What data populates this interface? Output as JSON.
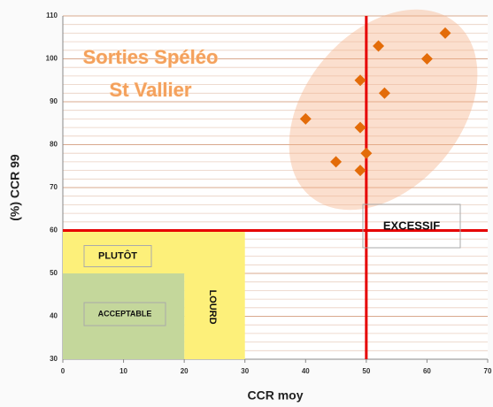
{
  "chart_data": {
    "type": "scatter",
    "title": [
      "Sorties Spéléo",
      "St Vallier"
    ],
    "xlabel": "CCR moy",
    "ylabel": "(%) CCR 99",
    "x": [
      40,
      45,
      49,
      49,
      49,
      50,
      52,
      53,
      60,
      63
    ],
    "values": [
      86,
      76,
      74,
      84,
      95,
      78,
      103,
      92,
      100,
      106
    ],
    "color": "#e36c09",
    "xlim": [
      0,
      70
    ],
    "ylim": [
      30,
      110
    ],
    "xticks": [
      0,
      10,
      20,
      30,
      40,
      50,
      60,
      70
    ],
    "yticks": [
      30,
      40,
      50,
      60,
      70,
      80,
      90,
      100,
      110
    ],
    "grid": true,
    "zones": [
      {
        "label": "PLUTÔT",
        "xlim": [
          0,
          30
        ],
        "ylim": [
          50,
          60
        ],
        "color": "#fdf07a"
      },
      {
        "label": "LOURD",
        "xlim": [
          20,
          30
        ],
        "ylim": [
          30,
          50
        ],
        "color": "#fdf07a"
      },
      {
        "label": "ACCEPTABLE",
        "xlim": [
          0,
          20
        ],
        "ylim": [
          30,
          50
        ],
        "color": "#c4d79b"
      }
    ],
    "annotation": "EXCESSIF",
    "reference_lines": [
      {
        "axis": "x",
        "value": 50
      },
      {
        "axis": "y",
        "value": 60
      }
    ],
    "reference_color": "#e60000"
  }
}
